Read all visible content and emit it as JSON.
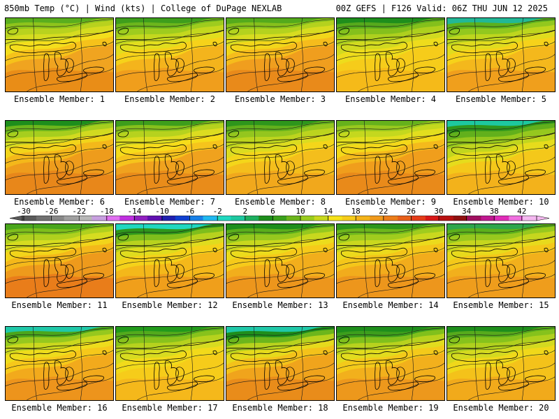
{
  "header": {
    "title_left": "850mb Temp (°C) | Wind (kts) | College of DuPage NEXLAB",
    "title_right": "00Z GEFS | F126 Valid: 06Z THU JUN 12 2025"
  },
  "colors": {
    "coast": "#000000",
    "contour": "#1a1a1a"
  },
  "members": [
    {
      "label": "Ensemble Member: 1",
      "fill": [
        "#e88a16",
        "#f0a420",
        "#f6c21a",
        "#f4de1c",
        "#d6dc20",
        "#b8d21e",
        "#8ec41c",
        "#5aae1e"
      ]
    },
    {
      "label": "Ensemble Member: 2",
      "fill": [
        "#ef9a1c",
        "#f4b41c",
        "#f6d21a",
        "#e2de1e",
        "#c4d81e",
        "#9ecc1e",
        "#6cb61c",
        "#3e9e1c"
      ]
    },
    {
      "label": "Ensemble Member: 3",
      "fill": [
        "#e8861a",
        "#f09e1e",
        "#f6bc1c",
        "#f2d61a",
        "#d8dc20",
        "#b4d21e",
        "#86c01c",
        "#54aa1c"
      ]
    },
    {
      "label": "Ensemble Member: 4",
      "fill": [
        "#f4b61a",
        "#f6cc1a",
        "#eedc1c",
        "#d2da20",
        "#aed01e",
        "#84c01c",
        "#56aa1c",
        "#1e8e1c"
      ]
    },
    {
      "label": "Ensemble Member: 5",
      "fill": [
        "#ee9a1c",
        "#f4b81c",
        "#f6d21a",
        "#e0dc1e",
        "#bed61e",
        "#92c81e",
        "#5cb01e",
        "#22b896"
      ]
    },
    {
      "label": "Ensemble Member: 6",
      "fill": [
        "#e6841a",
        "#ee9c1c",
        "#f4b81a",
        "#f2d41a",
        "#d2da20",
        "#a6ce1e",
        "#6cb61c",
        "#1e8e1c"
      ]
    },
    {
      "label": "Ensemble Member: 7",
      "fill": [
        "#e8881a",
        "#f0a21e",
        "#f6c41c",
        "#f6dc1a",
        "#dcdc20",
        "#b6d21e",
        "#86c01c",
        "#3e9e1c"
      ]
    },
    {
      "label": "Ensemble Member: 8",
      "fill": [
        "#f0a41c",
        "#f4be1c",
        "#f4d61a",
        "#dcdc20",
        "#bcd41e",
        "#94c61e",
        "#62b01c",
        "#2e961c"
      ]
    },
    {
      "label": "Ensemble Member: 9",
      "fill": [
        "#e8861a",
        "#f09e1c",
        "#f4ba1c",
        "#f4d81a",
        "#e2de1e",
        "#c4d81e",
        "#98c81e",
        "#66b21c"
      ]
    },
    {
      "label": "Ensemble Member: 10",
      "fill": [
        "#f2ae1c",
        "#f4c81a",
        "#e6dc1c",
        "#c2d61e",
        "#96c81e",
        "#62b01c",
        "#2e961c",
        "#1ec8a0"
      ]
    },
    {
      "label": "Ensemble Member: 11",
      "fill": [
        "#e8781a",
        "#ee9a1c",
        "#f4b81a",
        "#f2d41a",
        "#d6dc20",
        "#b0d01e",
        "#7ebe1c",
        "#4aa61c"
      ]
    },
    {
      "label": "Ensemble Member: 12",
      "fill": [
        "#ee9a1c",
        "#f4b81a",
        "#f4d21a",
        "#e0dc1e",
        "#b8d21e",
        "#7ebe1c",
        "#2e961c",
        "#20d8c0"
      ]
    },
    {
      "label": "Ensemble Member: 13",
      "fill": [
        "#ec921c",
        "#f2ae1c",
        "#f6ca1a",
        "#ecdc1c",
        "#c8d81e",
        "#96c81e",
        "#5aae1c",
        "#1e8e1c"
      ]
    },
    {
      "label": "Ensemble Member: 14",
      "fill": [
        "#ec921c",
        "#f2ac1c",
        "#f4c61a",
        "#ecda1c",
        "#cad81e",
        "#a0cc1e",
        "#6cb61c",
        "#2e961c"
      ]
    },
    {
      "label": "Ensemble Member: 15",
      "fill": [
        "#ee9a1c",
        "#f2b01c",
        "#f4c81a",
        "#e8da1c",
        "#c6d61e",
        "#98c81e",
        "#5cb01c",
        "#2ea64c"
      ]
    },
    {
      "label": "Ensemble Member: 16",
      "fill": [
        "#ec901c",
        "#f2aa1c",
        "#f6c81a",
        "#eedc1c",
        "#cad81e",
        "#96c81e",
        "#4aa61c",
        "#20c8a8"
      ]
    },
    {
      "label": "Ensemble Member: 17",
      "fill": [
        "#f4b41c",
        "#f6cc1a",
        "#f2da1a",
        "#d8dc20",
        "#b6d21e",
        "#88c21c",
        "#52aa1c",
        "#229a1c"
      ]
    },
    {
      "label": "Ensemble Member: 18",
      "fill": [
        "#e8881a",
        "#f0a41c",
        "#f4c21a",
        "#e6da1c",
        "#b8d21e",
        "#6cb61c",
        "#1e8e1c",
        "#20c8a8"
      ]
    },
    {
      "label": "Ensemble Member: 19",
      "fill": [
        "#ec941c",
        "#f2b01c",
        "#f4ca1a",
        "#e2dc1e",
        "#b8d21e",
        "#80c01c",
        "#3c9e1c",
        "#1e8e1c"
      ]
    },
    {
      "label": "Ensemble Member: 20",
      "fill": [
        "#f0a61c",
        "#f4c21a",
        "#f0d81a",
        "#d4da20",
        "#b0d01e",
        "#86c21c",
        "#56aa1c",
        "#1e8e1c"
      ]
    }
  ],
  "colorbar": {
    "ticks": [
      "-30",
      "-26",
      "-22",
      "-18",
      "-14",
      "-10",
      "-6",
      "-2",
      "2",
      "6",
      "10",
      "14",
      "18",
      "22",
      "26",
      "30",
      "34",
      "38",
      "42"
    ],
    "left_arrow_color": "#5a5a5a",
    "right_arrow_color": "#f4b8f0",
    "colors": [
      "#5a5a5a",
      "#707070",
      "#888888",
      "#a0a0a0",
      "#b8b8b8",
      "#c8a0e0",
      "#e070f0",
      "#c030e0",
      "#9020c0",
      "#6010b0",
      "#2020b0",
      "#1040d0",
      "#1880e8",
      "#20b8f0",
      "#20d8c0",
      "#1ec8a0",
      "#1eb060",
      "#1e8e1c",
      "#3aa01c",
      "#6cb61c",
      "#9acc1e",
      "#c8d81e",
      "#f6e21a",
      "#f6cc1a",
      "#f4b41a",
      "#f09a1c",
      "#ec7e1a",
      "#e8601a",
      "#e43c18",
      "#d81818",
      "#b81010",
      "#901010",
      "#a01060",
      "#c01890",
      "#e02cb8",
      "#f070e0",
      "#f4b8f0"
    ]
  }
}
